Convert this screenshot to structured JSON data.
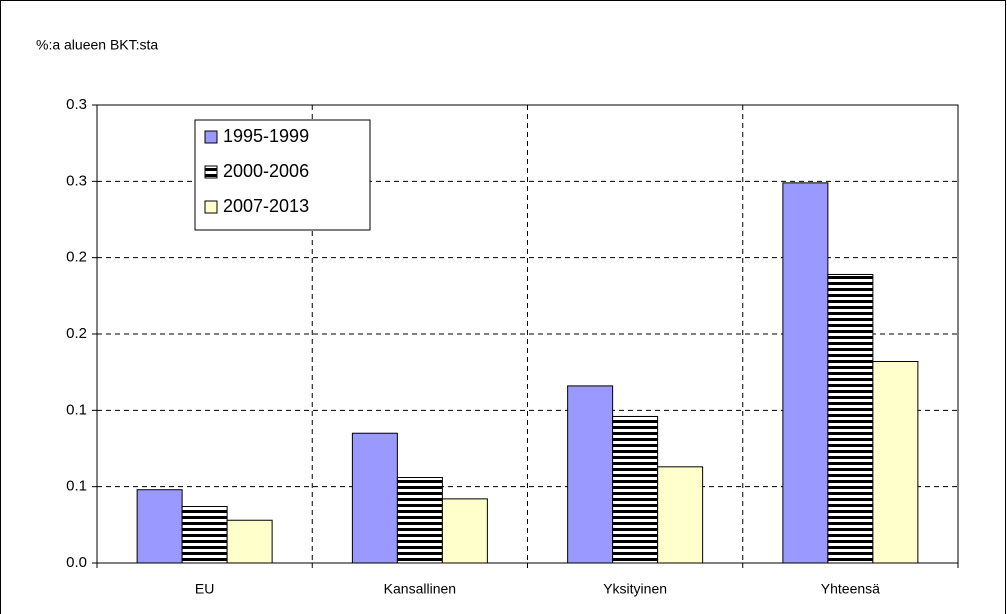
{
  "chart_data": {
    "type": "bar",
    "ylabel": "%:a alueen BKT:sta",
    "categories": [
      "EU",
      "Kansallinen",
      "Yksityinen",
      "Yhteensä"
    ],
    "series": [
      {
        "name": "1995-1999",
        "color": "#9999ff",
        "values": [
          0.048,
          0.085,
          0.116,
          0.249
        ]
      },
      {
        "name": "2000-2006",
        "color": "#000000",
        "hatch": "horizontal",
        "values": [
          0.037,
          0.056,
          0.096,
          0.189
        ]
      },
      {
        "name": "2007-2013",
        "color": "#ffffcc",
        "values": [
          0.028,
          0.042,
          0.063,
          0.132
        ]
      }
    ],
    "ylim": [
      0,
      0.3
    ],
    "yticks": [
      {
        "value": 0,
        "label": "0.0"
      },
      {
        "value": 0.05,
        "label": "0.1"
      },
      {
        "value": 0.1,
        "label": "0.1"
      },
      {
        "value": 0.15,
        "label": "0.2"
      },
      {
        "value": 0.2,
        "label": "0.2"
      },
      {
        "value": 0.25,
        "label": "0.3"
      },
      {
        "value": 0.3,
        "label": "0.3"
      }
    ],
    "grid": true,
    "legend": "upper left"
  }
}
